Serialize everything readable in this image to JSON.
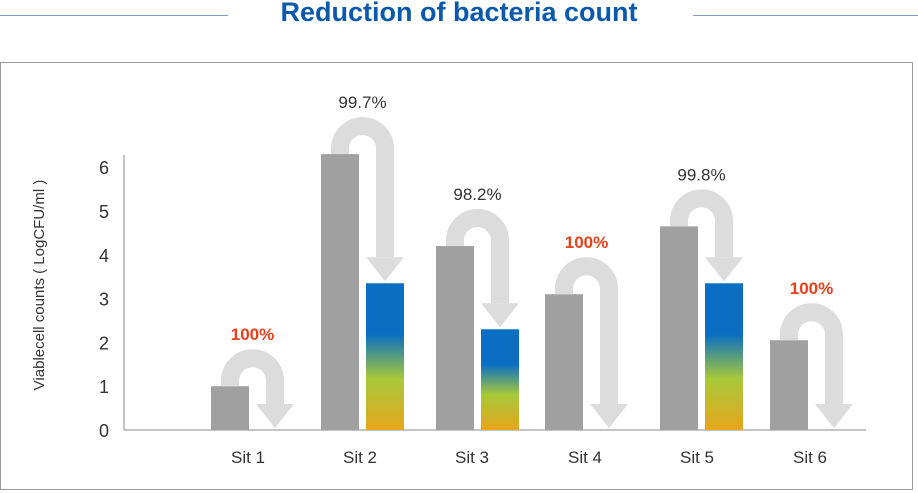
{
  "title": "Reduction of bacteria count",
  "chart_data": {
    "type": "bar",
    "title": "Reduction of bacteria count",
    "ylabel": "Viablecell counts ( LogCFU/ml )",
    "xlabel": "",
    "ylim": [
      0,
      6.3
    ],
    "yticks": [
      0,
      1,
      2,
      3,
      4,
      5,
      6
    ],
    "grid": false,
    "categories": [
      "Sit 1",
      "Sit 2",
      "Sit 3",
      "Sit 4",
      "Sit 5",
      "Sit 6"
    ],
    "series": [
      {
        "values": [
          1.0,
          6.3,
          4.2,
          3.1,
          4.65,
          2.05
        ]
      },
      {
        "values": [
          0,
          3.35,
          2.3,
          0,
          3.35,
          0
        ]
      }
    ],
    "annotations": [
      "100%",
      "99.7%",
      "98.2%",
      "100%",
      "99.8%",
      "100%"
    ],
    "annotation_colors": [
      "#e8401c",
      "#333333",
      "#333333",
      "#e8401c",
      "#333333",
      "#e8401c"
    ],
    "colors": {
      "before_bar": "#a0a0a0",
      "arrow": "#dcdcdc",
      "gradient_top": "#0a6fc2",
      "gradient_mid": "#a7c93a",
      "gradient_bottom": "#e8a61c"
    }
  }
}
